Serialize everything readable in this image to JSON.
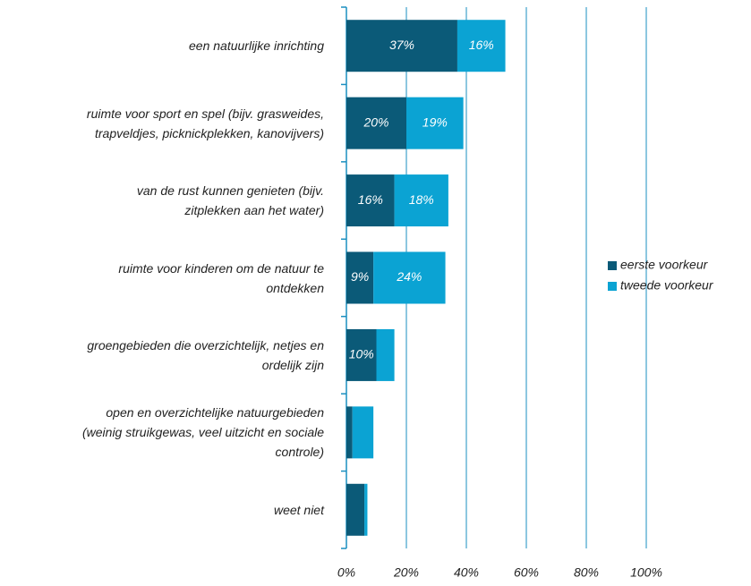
{
  "chart_data": {
    "type": "stacked-barh",
    "categories": [
      "een natuurlijke inrichting",
      "ruimte voor sport en spel (bijv. grasweides,\ntrapveldjes, picknickplekken, kanovijvers)",
      "van de rust kunnen genieten (bijv.\nzitplekken aan het water)",
      "ruimte voor kinderen om de natuur te\nontdekken",
      "groengebieden die overzichtelijk, netjes en\nordelijk zijn",
      "open en overzichtelijke natuurgebieden\n(weinig struikgewas, veel uitzicht en sociale\ncontrole)",
      "weet niet"
    ],
    "series": [
      {
        "name": "eerste voorkeur",
        "color": "#0b5a78",
        "values": [
          37,
          20,
          16,
          9,
          10,
          2,
          6
        ],
        "value_labels": [
          "37%",
          "20%",
          "16%",
          "9%",
          "10%",
          null,
          null
        ]
      },
      {
        "name": "tweede voorkeur",
        "color": "#0ba3d3",
        "values": [
          16,
          19,
          18,
          24,
          6,
          7,
          1
        ],
        "value_labels": [
          "16%",
          "19%",
          "18%",
          "24%",
          null,
          null,
          null
        ]
      }
    ],
    "xlim": [
      0,
      100
    ],
    "xticks": [
      {
        "value": 0,
        "label": "0%"
      },
      {
        "value": 20,
        "label": "20%"
      },
      {
        "value": 40,
        "label": "40%"
      },
      {
        "value": 60,
        "label": "60%"
      },
      {
        "value": 80,
        "label": "80%"
      },
      {
        "value": 100,
        "label": "100%"
      }
    ],
    "grid": true,
    "legend": "right"
  }
}
